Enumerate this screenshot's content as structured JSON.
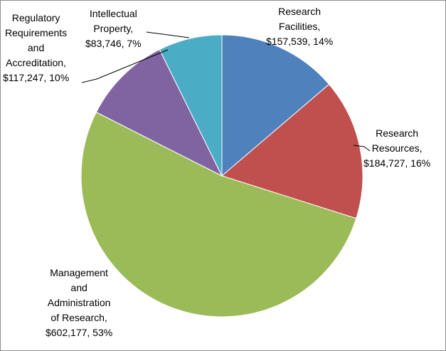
{
  "chart_data": {
    "type": "pie",
    "slices": [
      {
        "name": "Research Facilities",
        "value": 157539,
        "percent": 14,
        "color": "#4F81BD",
        "label_lines": [
          "Research",
          "Facilities,",
          "$157,539, 14%"
        ]
      },
      {
        "name": "Research Resources",
        "value": 184727,
        "percent": 16,
        "color": "#C0504D",
        "label_lines": [
          "Research",
          "Resources,",
          "$184,727, 16%"
        ]
      },
      {
        "name": "Management and Administration of Research",
        "value": 602177,
        "percent": 53,
        "color": "#9BBB59",
        "label_lines": [
          "Management",
          "and",
          "Administration",
          "of Research,",
          "$602,177, 53%"
        ]
      },
      {
        "name": "Regulatory Requirements and Accreditation",
        "value": 117247,
        "percent": 10,
        "color": "#8064A2",
        "label_lines": [
          "Regulatory",
          "Requirements",
          "and",
          "Accreditation,",
          "$117,247,  10%"
        ]
      },
      {
        "name": "Intellectual Property",
        "value": 83746,
        "percent": 7,
        "color": "#4BACC6",
        "label_lines": [
          "Intellectual",
          "Property,",
          "$83,746, 7%"
        ]
      }
    ],
    "start_angle_deg": 0,
    "direction": "clockwise",
    "legend": "none",
    "data_labels": "outside-with-leader-lines"
  }
}
